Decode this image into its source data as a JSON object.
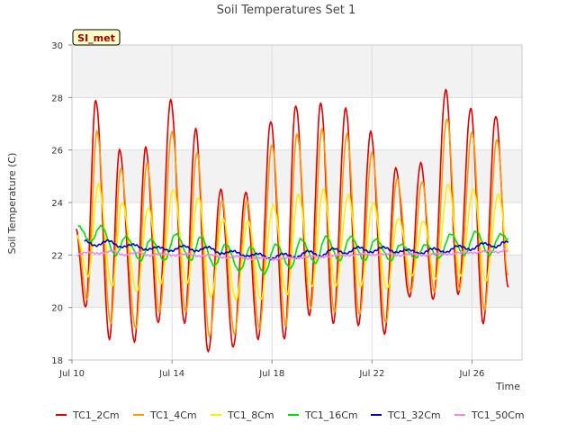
{
  "chart_data": {
    "type": "line",
    "title": "Soil Temperatures Set 1",
    "xlabel": "Time",
    "ylabel": "Soil Temperature (C)",
    "badge": "SI_met",
    "x_range_days": [
      0,
      18
    ],
    "x_start_label": "Jul 10",
    "x_ticks": [
      {
        "day": 0,
        "label": "Jul 10"
      },
      {
        "day": 4,
        "label": "Jul 14"
      },
      {
        "day": 8,
        "label": "Jul 18"
      },
      {
        "day": 12,
        "label": "Jul 22"
      },
      {
        "day": 16,
        "label": "Jul 26"
      }
    ],
    "ylim": [
      18,
      30
    ],
    "y_ticks": [
      18,
      20,
      22,
      24,
      26,
      28,
      30
    ],
    "grid": true,
    "legend_position": "bottom",
    "series": [
      {
        "name": "TC1_2Cm",
        "color": "#dd0000",
        "peaks": [
          {
            "t": 0.15,
            "v": 23.0
          },
          {
            "t": 0.95,
            "v": 27.9
          },
          {
            "t": 1.9,
            "v": 26.0
          },
          {
            "t": 2.95,
            "v": 26.1
          },
          {
            "t": 3.95,
            "v": 27.9
          },
          {
            "t": 4.95,
            "v": 26.8
          },
          {
            "t": 5.95,
            "v": 24.5
          },
          {
            "t": 6.95,
            "v": 24.4
          },
          {
            "t": 7.95,
            "v": 27.1
          },
          {
            "t": 8.95,
            "v": 27.7
          },
          {
            "t": 9.95,
            "v": 27.8
          },
          {
            "t": 10.95,
            "v": 27.6
          },
          {
            "t": 11.95,
            "v": 26.7
          },
          {
            "t": 12.95,
            "v": 25.3
          },
          {
            "t": 13.95,
            "v": 25.5
          },
          {
            "t": 14.95,
            "v": 28.3
          },
          {
            "t": 15.95,
            "v": 27.6
          },
          {
            "t": 16.95,
            "v": 27.3
          }
        ],
        "troughs": [
          {
            "t": 0.55,
            "v": 20.0
          },
          {
            "t": 1.5,
            "v": 18.8
          },
          {
            "t": 2.5,
            "v": 18.7
          },
          {
            "t": 3.45,
            "v": 19.4
          },
          {
            "t": 4.5,
            "v": 19.4
          },
          {
            "t": 5.45,
            "v": 18.3
          },
          {
            "t": 6.45,
            "v": 18.5
          },
          {
            "t": 7.45,
            "v": 18.8
          },
          {
            "t": 8.5,
            "v": 18.8
          },
          {
            "t": 9.5,
            "v": 19.7
          },
          {
            "t": 10.45,
            "v": 19.4
          },
          {
            "t": 11.45,
            "v": 19.3
          },
          {
            "t": 12.5,
            "v": 19.0
          },
          {
            "t": 13.5,
            "v": 20.4
          },
          {
            "t": 14.45,
            "v": 20.3
          },
          {
            "t": 15.45,
            "v": 20.5
          },
          {
            "t": 16.45,
            "v": 19.4
          }
        ],
        "end": {
          "t": 17.45,
          "v": 20.8
        }
      },
      {
        "name": "TC1_4Cm",
        "color": "#ff9900",
        "peaks": [
          {
            "t": 0.2,
            "v": 22.8
          },
          {
            "t": 1.0,
            "v": 26.7
          },
          {
            "t": 1.95,
            "v": 25.3
          },
          {
            "t": 3.0,
            "v": 25.5
          },
          {
            "t": 4.0,
            "v": 26.7
          },
          {
            "t": 5.0,
            "v": 25.9
          },
          {
            "t": 6.0,
            "v": 24.1
          },
          {
            "t": 7.0,
            "v": 24.1
          },
          {
            "t": 8.0,
            "v": 26.2
          },
          {
            "t": 9.0,
            "v": 26.6
          },
          {
            "t": 10.0,
            "v": 26.8
          },
          {
            "t": 11.0,
            "v": 26.6
          },
          {
            "t": 12.0,
            "v": 25.9
          },
          {
            "t": 13.0,
            "v": 24.9
          },
          {
            "t": 14.0,
            "v": 24.8
          },
          {
            "t": 15.0,
            "v": 27.2
          },
          {
            "t": 16.0,
            "v": 26.7
          },
          {
            "t": 17.0,
            "v": 26.4
          }
        ],
        "troughs": [
          {
            "t": 0.6,
            "v": 20.3
          },
          {
            "t": 1.55,
            "v": 19.4
          },
          {
            "t": 2.55,
            "v": 19.2
          },
          {
            "t": 3.5,
            "v": 19.8
          },
          {
            "t": 4.55,
            "v": 19.8
          },
          {
            "t": 5.5,
            "v": 18.9
          },
          {
            "t": 6.5,
            "v": 19.0
          },
          {
            "t": 7.5,
            "v": 19.2
          },
          {
            "t": 8.55,
            "v": 19.3
          },
          {
            "t": 9.55,
            "v": 20.0
          },
          {
            "t": 10.5,
            "v": 19.8
          },
          {
            "t": 11.5,
            "v": 19.7
          },
          {
            "t": 12.55,
            "v": 19.4
          },
          {
            "t": 13.55,
            "v": 20.6
          },
          {
            "t": 14.5,
            "v": 20.6
          },
          {
            "t": 15.5,
            "v": 20.7
          },
          {
            "t": 16.5,
            "v": 19.9
          }
        ],
        "end": {
          "t": 17.45,
          "v": 21.2
        }
      },
      {
        "name": "TC1_8Cm",
        "color": "#ffee00",
        "peaks": [
          {
            "t": 0.2,
            "v": 22.7
          },
          {
            "t": 1.05,
            "v": 24.7
          },
          {
            "t": 2.0,
            "v": 24.0
          },
          {
            "t": 3.05,
            "v": 23.8
          },
          {
            "t": 4.05,
            "v": 24.5
          },
          {
            "t": 5.05,
            "v": 24.2
          },
          {
            "t": 6.05,
            "v": 23.4
          },
          {
            "t": 7.05,
            "v": 23.3
          },
          {
            "t": 8.05,
            "v": 23.9
          },
          {
            "t": 9.05,
            "v": 24.3
          },
          {
            "t": 10.05,
            "v": 24.5
          },
          {
            "t": 11.05,
            "v": 24.3
          },
          {
            "t": 12.05,
            "v": 24.0
          },
          {
            "t": 13.05,
            "v": 23.4
          },
          {
            "t": 14.05,
            "v": 23.3
          },
          {
            "t": 15.05,
            "v": 24.7
          },
          {
            "t": 16.05,
            "v": 24.5
          },
          {
            "t": 17.05,
            "v": 24.3
          }
        ],
        "troughs": [
          {
            "t": 0.65,
            "v": 21.2
          },
          {
            "t": 1.6,
            "v": 20.8
          },
          {
            "t": 2.6,
            "v": 20.6
          },
          {
            "t": 3.55,
            "v": 20.9
          },
          {
            "t": 4.6,
            "v": 20.9
          },
          {
            "t": 5.55,
            "v": 20.4
          },
          {
            "t": 6.55,
            "v": 20.3
          },
          {
            "t": 7.55,
            "v": 20.3
          },
          {
            "t": 8.6,
            "v": 20.5
          },
          {
            "t": 9.6,
            "v": 20.8
          },
          {
            "t": 10.55,
            "v": 20.8
          },
          {
            "t": 11.55,
            "v": 20.8
          },
          {
            "t": 12.6,
            "v": 20.7
          },
          {
            "t": 13.6,
            "v": 21.2
          },
          {
            "t": 14.55,
            "v": 21.1
          },
          {
            "t": 15.55,
            "v": 21.2
          },
          {
            "t": 16.55,
            "v": 21.0
          }
        ],
        "end": {
          "t": 17.45,
          "v": 22.2
        }
      },
      {
        "name": "TC1_16Cm",
        "color": "#00dd00",
        "peaks": [
          {
            "t": 0.25,
            "v": 23.1
          },
          {
            "t": 1.15,
            "v": 23.1
          },
          {
            "t": 2.15,
            "v": 22.7
          },
          {
            "t": 3.15,
            "v": 22.6
          },
          {
            "t": 4.15,
            "v": 22.8
          },
          {
            "t": 5.15,
            "v": 22.7
          },
          {
            "t": 6.15,
            "v": 22.4
          },
          {
            "t": 7.15,
            "v": 22.3
          },
          {
            "t": 8.15,
            "v": 22.4
          },
          {
            "t": 9.15,
            "v": 22.6
          },
          {
            "t": 10.15,
            "v": 22.7
          },
          {
            "t": 11.15,
            "v": 22.7
          },
          {
            "t": 12.15,
            "v": 22.6
          },
          {
            "t": 13.15,
            "v": 22.4
          },
          {
            "t": 14.15,
            "v": 22.4
          },
          {
            "t": 15.15,
            "v": 22.8
          },
          {
            "t": 16.15,
            "v": 22.9
          },
          {
            "t": 17.15,
            "v": 22.8
          }
        ],
        "troughs": [
          {
            "t": 0.75,
            "v": 22.5
          },
          {
            "t": 1.75,
            "v": 22.0
          },
          {
            "t": 2.75,
            "v": 21.8
          },
          {
            "t": 3.7,
            "v": 21.8
          },
          {
            "t": 4.75,
            "v": 21.8
          },
          {
            "t": 5.7,
            "v": 21.6
          },
          {
            "t": 6.7,
            "v": 21.4
          },
          {
            "t": 7.7,
            "v": 21.3
          },
          {
            "t": 8.75,
            "v": 21.5
          },
          {
            "t": 9.75,
            "v": 21.7
          },
          {
            "t": 10.7,
            "v": 21.8
          },
          {
            "t": 11.7,
            "v": 21.8
          },
          {
            "t": 12.75,
            "v": 21.8
          },
          {
            "t": 13.75,
            "v": 21.9
          },
          {
            "t": 14.7,
            "v": 21.9
          },
          {
            "t": 15.7,
            "v": 22.0
          },
          {
            "t": 16.7,
            "v": 22.0
          }
        ],
        "end": {
          "t": 17.45,
          "v": 22.6
        }
      },
      {
        "name": "TC1_32Cm",
        "color": "#0000cc",
        "peaks": [
          {
            "t": 0.5,
            "v": 22.55
          },
          {
            "t": 1.45,
            "v": 22.55
          },
          {
            "t": 2.45,
            "v": 22.4
          },
          {
            "t": 3.45,
            "v": 22.3
          },
          {
            "t": 4.45,
            "v": 22.35
          },
          {
            "t": 5.45,
            "v": 22.3
          },
          {
            "t": 6.45,
            "v": 22.15
          },
          {
            "t": 7.45,
            "v": 22.05
          },
          {
            "t": 8.45,
            "v": 22.05
          },
          {
            "t": 9.45,
            "v": 22.15
          },
          {
            "t": 10.45,
            "v": 22.25
          },
          {
            "t": 11.45,
            "v": 22.3
          },
          {
            "t": 12.45,
            "v": 22.3
          },
          {
            "t": 13.45,
            "v": 22.2
          },
          {
            "t": 14.45,
            "v": 22.25
          },
          {
            "t": 15.45,
            "v": 22.35
          },
          {
            "t": 16.45,
            "v": 22.45
          },
          {
            "t": 17.3,
            "v": 22.5
          }
        ],
        "troughs": [
          {
            "t": 0.95,
            "v": 22.35
          },
          {
            "t": 1.95,
            "v": 22.3
          },
          {
            "t": 2.95,
            "v": 22.2
          },
          {
            "t": 3.95,
            "v": 22.15
          },
          {
            "t": 4.95,
            "v": 22.15
          },
          {
            "t": 5.95,
            "v": 22.05
          },
          {
            "t": 6.95,
            "v": 21.95
          },
          {
            "t": 7.95,
            "v": 21.85
          },
          {
            "t": 8.95,
            "v": 21.9
          },
          {
            "t": 9.95,
            "v": 21.95
          },
          {
            "t": 10.95,
            "v": 22.05
          },
          {
            "t": 11.95,
            "v": 22.1
          },
          {
            "t": 12.95,
            "v": 22.1
          },
          {
            "t": 13.95,
            "v": 22.05
          },
          {
            "t": 14.95,
            "v": 22.1
          },
          {
            "t": 15.95,
            "v": 22.2
          },
          {
            "t": 16.95,
            "v": 22.3
          }
        ],
        "end": {
          "t": 17.45,
          "v": 22.5
        }
      },
      {
        "name": "TC1_50Cm",
        "color": "#ee88ee",
        "peaks": [
          {
            "t": 0.6,
            "v": 22.1
          },
          {
            "t": 1.6,
            "v": 22.15
          },
          {
            "t": 2.6,
            "v": 22.1
          },
          {
            "t": 3.6,
            "v": 22.05
          },
          {
            "t": 4.6,
            "v": 22.05
          },
          {
            "t": 5.6,
            "v": 22.0
          },
          {
            "t": 6.6,
            "v": 21.95
          },
          {
            "t": 7.6,
            "v": 21.9
          },
          {
            "t": 8.6,
            "v": 21.9
          },
          {
            "t": 9.6,
            "v": 21.95
          },
          {
            "t": 10.6,
            "v": 22.0
          },
          {
            "t": 11.6,
            "v": 22.05
          },
          {
            "t": 12.6,
            "v": 22.05
          },
          {
            "t": 13.6,
            "v": 22.05
          },
          {
            "t": 14.6,
            "v": 22.05
          },
          {
            "t": 15.6,
            "v": 22.1
          },
          {
            "t": 16.6,
            "v": 22.15
          },
          {
            "t": 17.3,
            "v": 22.2
          }
        ],
        "troughs": [
          {
            "t": 0.2,
            "v": 22.0
          },
          {
            "t": 1.1,
            "v": 22.05
          },
          {
            "t": 2.1,
            "v": 22.0
          },
          {
            "t": 3.1,
            "v": 21.98
          },
          {
            "t": 4.1,
            "v": 21.98
          },
          {
            "t": 5.1,
            "v": 21.95
          },
          {
            "t": 6.1,
            "v": 21.9
          },
          {
            "t": 7.1,
            "v": 21.85
          },
          {
            "t": 8.1,
            "v": 21.83
          },
          {
            "t": 9.1,
            "v": 21.88
          },
          {
            "t": 10.1,
            "v": 21.93
          },
          {
            "t": 11.1,
            "v": 21.98
          },
          {
            "t": 12.1,
            "v": 22.0
          },
          {
            "t": 13.1,
            "v": 21.98
          },
          {
            "t": 14.1,
            "v": 21.98
          },
          {
            "t": 15.1,
            "v": 22.03
          },
          {
            "t": 16.1,
            "v": 22.08
          },
          {
            "t": 17.1,
            "v": 22.1
          }
        ],
        "end": {
          "t": 17.45,
          "v": 22.15
        }
      }
    ]
  }
}
